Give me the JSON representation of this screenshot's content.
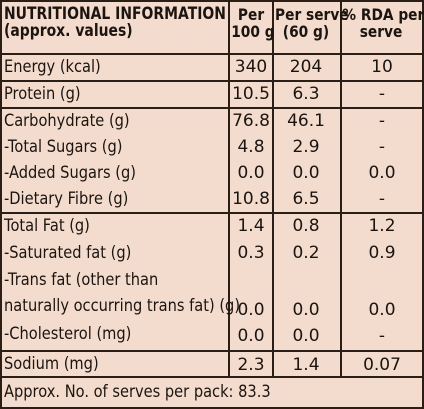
{
  "header": {
    "title_line1": "NUTRITIONAL INFORMATION",
    "title_line2": "(approx. values)",
    "col_per_100g_line1": "Per",
    "col_per_100g_line2": "100 g",
    "col_per_serve_line1": "Per serve",
    "col_per_serve_line2": "(60 g)",
    "col_rda_line1": "% RDA per",
    "col_rda_line2": "serve"
  },
  "rows": {
    "energy": {
      "label": "Energy (kcal)",
      "per100": "340",
      "serve": "204",
      "rda": "10"
    },
    "protein": {
      "label": "Protein (g)",
      "per100": "10.5",
      "serve": "6.3",
      "rda": "-"
    },
    "carbohydrate": {
      "label": "Carbohydrate (g)",
      "per100": "76.8",
      "serve": "46.1",
      "rda": "-"
    },
    "total_sugars": {
      "label": "-Total Sugars (g)",
      "per100": "4.8",
      "serve": "2.9",
      "rda": "-"
    },
    "added_sugars": {
      "label": "-Added Sugars (g)",
      "per100": "0.0",
      "serve": "0.0",
      "rda": "0.0"
    },
    "dietary_fibre": {
      "label": "-Dietary Fibre (g)",
      "per100": "10.8",
      "serve": "6.5",
      "rda": "-"
    },
    "total_fat": {
      "label": "Total Fat (g)",
      "per100": "1.4",
      "serve": "0.8",
      "rda": "1.2"
    },
    "saturated_fat": {
      "label": "-Saturated fat  (g)",
      "per100": "0.3",
      "serve": "0.2",
      "rda": "0.9"
    },
    "trans_fat": {
      "label_line1": "-Trans fat (other than",
      "label_line2": "naturally occurring trans fat) (g)",
      "per100": "0.0",
      "serve": "0.0",
      "rda": "0.0"
    },
    "cholesterol": {
      "label": "-Cholesterol (mg)",
      "per100": "0.0",
      "serve": "0.0",
      "rda": "-"
    },
    "sodium": {
      "label": "Sodium (mg)",
      "per100": "2.3",
      "serve": "1.4",
      "rda": "0.07"
    }
  },
  "footer": {
    "serves": "Approx. No. of serves per pack: 83.3"
  }
}
